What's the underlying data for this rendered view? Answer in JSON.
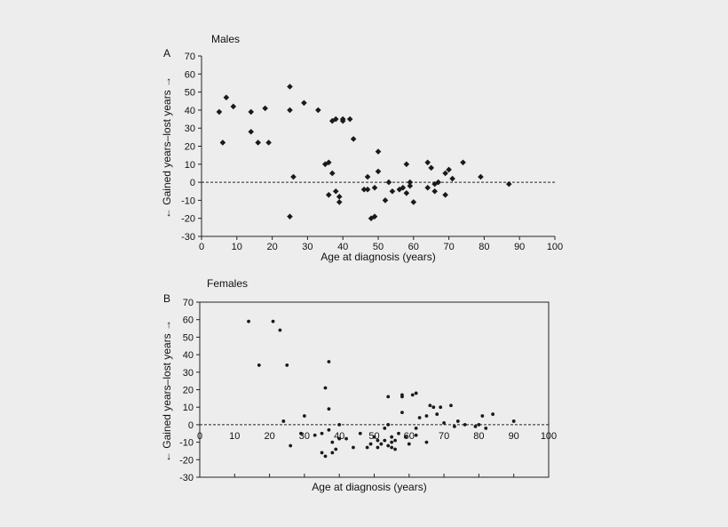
{
  "chart_data": [
    {
      "type": "scatter",
      "panel_letter": "A",
      "title": "Males",
      "xlabel": "Age at diagnosis (years)",
      "ylabel": "← Gained years–lost years →",
      "xlim": [
        0,
        100
      ],
      "ylim": [
        -30,
        70
      ],
      "x_ticks": [
        0,
        10,
        20,
        30,
        40,
        50,
        60,
        70,
        80,
        90,
        100
      ],
      "y_ticks": [
        70,
        60,
        50,
        40,
        30,
        20,
        10,
        0,
        -10,
        -20,
        -30
      ],
      "reference_line": {
        "y": 0,
        "style": "dashed"
      },
      "marker": "diamond",
      "points": [
        [
          5,
          39
        ],
        [
          6,
          22
        ],
        [
          7,
          47
        ],
        [
          9,
          42
        ],
        [
          14,
          39
        ],
        [
          14,
          28
        ],
        [
          16,
          22
        ],
        [
          18,
          41
        ],
        [
          19,
          22
        ],
        [
          25,
          53
        ],
        [
          25,
          40
        ],
        [
          25,
          -19
        ],
        [
          26,
          3
        ],
        [
          29,
          44
        ],
        [
          33,
          40
        ],
        [
          35,
          10
        ],
        [
          36,
          11
        ],
        [
          36,
          -7
        ],
        [
          37,
          5
        ],
        [
          37,
          34
        ],
        [
          38,
          35
        ],
        [
          38,
          -5
        ],
        [
          39,
          -8
        ],
        [
          39,
          -11
        ],
        [
          40,
          35
        ],
        [
          40,
          34
        ],
        [
          42,
          35
        ],
        [
          43,
          24
        ],
        [
          46,
          -4
        ],
        [
          47,
          3
        ],
        [
          47,
          -4
        ],
        [
          48,
          -20
        ],
        [
          49,
          -19
        ],
        [
          49,
          -3
        ],
        [
          50,
          6
        ],
        [
          50,
          17
        ],
        [
          52,
          -10
        ],
        [
          53,
          0
        ],
        [
          54,
          -5
        ],
        [
          56,
          -4
        ],
        [
          57,
          -3
        ],
        [
          58,
          10
        ],
        [
          58,
          -6
        ],
        [
          59,
          0
        ],
        [
          59,
          -2
        ],
        [
          60,
          -11
        ],
        [
          64,
          11
        ],
        [
          64,
          -3
        ],
        [
          65,
          8
        ],
        [
          66,
          -5
        ],
        [
          66,
          -1
        ],
        [
          67,
          0
        ],
        [
          69,
          5
        ],
        [
          69,
          -7
        ],
        [
          70,
          7
        ],
        [
          71,
          2
        ],
        [
          74,
          11
        ],
        [
          79,
          3
        ],
        [
          87,
          -1
        ]
      ]
    },
    {
      "type": "scatter",
      "panel_letter": "B",
      "title": "Females",
      "xlabel": "Age at diagnosis (years)",
      "ylabel": "← Gained years–lost years →",
      "xlim": [
        0,
        100
      ],
      "ylim": [
        -30,
        70
      ],
      "x_ticks": [
        0,
        10,
        20,
        30,
        40,
        50,
        60,
        70,
        80,
        90,
        100
      ],
      "y_ticks": [
        70,
        60,
        50,
        40,
        30,
        20,
        10,
        0,
        -10,
        -20,
        -30
      ],
      "reference_line": {
        "y": 0,
        "style": "dashed"
      },
      "marker": "dot",
      "points": [
        [
          14,
          59
        ],
        [
          17,
          34
        ],
        [
          21,
          59
        ],
        [
          23,
          54
        ],
        [
          24,
          2
        ],
        [
          25,
          34
        ],
        [
          26,
          -12
        ],
        [
          29,
          -5
        ],
        [
          30,
          5
        ],
        [
          33,
          -6
        ],
        [
          35,
          -5
        ],
        [
          35,
          -16
        ],
        [
          36,
          21
        ],
        [
          36,
          -18
        ],
        [
          37,
          36
        ],
        [
          37,
          9
        ],
        [
          37,
          -3
        ],
        [
          38,
          -16
        ],
        [
          38,
          -10
        ],
        [
          39,
          -14
        ],
        [
          40,
          0
        ],
        [
          40,
          -8
        ],
        [
          42,
          -8
        ],
        [
          44,
          -13
        ],
        [
          46,
          -5
        ],
        [
          48,
          -13
        ],
        [
          49,
          -11
        ],
        [
          50,
          -7
        ],
        [
          51,
          -13
        ],
        [
          51,
          -9
        ],
        [
          52,
          -11
        ],
        [
          53,
          -9
        ],
        [
          53,
          -2
        ],
        [
          54,
          -12
        ],
        [
          54,
          0
        ],
        [
          54,
          16
        ],
        [
          55,
          -13
        ],
        [
          55,
          -10
        ],
        [
          55,
          -7
        ],
        [
          56,
          -14
        ],
        [
          56,
          -9
        ],
        [
          57,
          -5
        ],
        [
          58,
          7
        ],
        [
          58,
          16
        ],
        [
          58,
          17
        ],
        [
          59,
          -7
        ],
        [
          60,
          -11
        ],
        [
          61,
          17
        ],
        [
          62,
          18
        ],
        [
          62,
          -2
        ],
        [
          62,
          -6
        ],
        [
          63,
          4
        ],
        [
          65,
          5
        ],
        [
          65,
          -10
        ],
        [
          66,
          11
        ],
        [
          67,
          10
        ],
        [
          68,
          6
        ],
        [
          69,
          10
        ],
        [
          70,
          1
        ],
        [
          72,
          11
        ],
        [
          73,
          -1
        ],
        [
          74,
          2
        ],
        [
          76,
          0
        ],
        [
          79,
          -1
        ],
        [
          80,
          0
        ],
        [
          81,
          5
        ],
        [
          82,
          -2
        ],
        [
          84,
          6
        ],
        [
          90,
          2
        ]
      ]
    }
  ]
}
